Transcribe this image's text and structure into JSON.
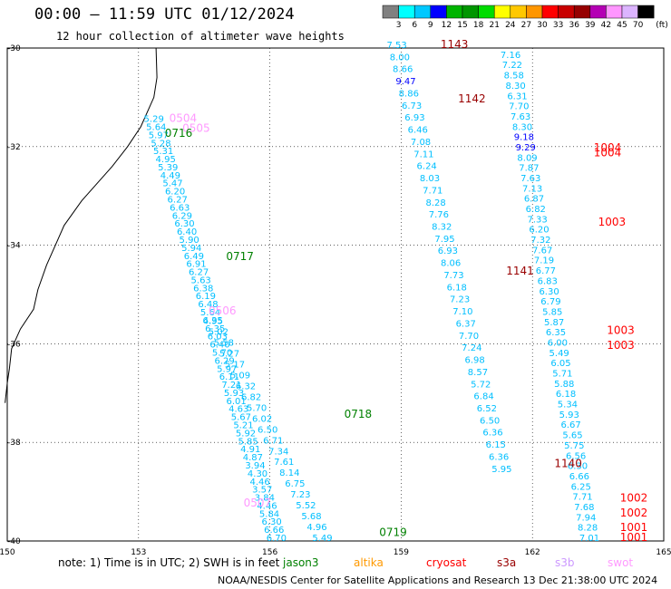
{
  "title": "00:00 – 11:59 UTC 01/12/2024",
  "subtitle": "12 hour collection of altimeter wave heights",
  "footer": "NOAA/NESDIS Center for Satellite Applications and Research   13 Dec 21:38:00 UTC 2024",
  "note": "note: 1) Time is in UTC; 2) SWH is in feet",
  "colorbar": {
    "unit": "(ft)",
    "ticks": [
      "3",
      "6",
      "9",
      "12",
      "15",
      "18",
      "21",
      "24",
      "27",
      "30",
      "33",
      "36",
      "39",
      "42",
      "45",
      "70"
    ],
    "colors": [
      "#808080",
      "#00ffff",
      "#00c8ff",
      "#0000ff",
      "#00b400",
      "#009600",
      "#00dc00",
      "#ffff00",
      "#ffc800",
      "#ff9600",
      "#ff0000",
      "#c80000",
      "#960000",
      "#b400b4",
      "#ff96ff",
      "#dcb4ff",
      "#000000"
    ]
  },
  "satellites": [
    {
      "name": "jason3",
      "color": "#008000"
    },
    {
      "name": "altika",
      "color": "#ff9900"
    },
    {
      "name": "cryosat",
      "color": "#ff0000"
    },
    {
      "name": "s3a",
      "color": "#990000"
    },
    {
      "name": "s3b",
      "color": "#cc99ff"
    },
    {
      "name": "swot",
      "color": "#ff99ff"
    }
  ],
  "chart_data": {
    "type": "scatter",
    "title": "00:00 – 11:59 UTC 01/12/2024",
    "subtitle": "12 hour collection of altimeter wave heights",
    "xlim": [
      150,
      165
    ],
    "ylim": [
      -40,
      -30
    ],
    "x_ticks": [
      "150",
      "153",
      "156",
      "159",
      "162",
      "165"
    ],
    "y_ticks": [
      "-30",
      "-32",
      "-34",
      "-36",
      "-38",
      "-40"
    ],
    "grid": true,
    "pass_labels": [
      {
        "text": "0504",
        "color": "#ff99ff",
        "lon": 153.7,
        "lat": -31.5
      },
      {
        "text": "0505",
        "color": "#ff99ff",
        "lon": 154.0,
        "lat": -31.7
      },
      {
        "text": "0716",
        "color": "#008000",
        "lon": 153.6,
        "lat": -31.8
      },
      {
        "text": "0717",
        "color": "#008000",
        "lon": 155.0,
        "lat": -34.3
      },
      {
        "text": "0506",
        "color": "#ff99ff",
        "lon": 154.6,
        "lat": -35.4
      },
      {
        "text": "0718",
        "color": "#008000",
        "lon": 157.7,
        "lat": -37.5
      },
      {
        "text": "0507",
        "color": "#ff99ff",
        "lon": 155.4,
        "lat": -39.3
      },
      {
        "text": "0719",
        "color": "#008000",
        "lon": 158.5,
        "lat": -39.9
      },
      {
        "text": "1143",
        "color": "#990000",
        "lon": 159.9,
        "lat": -30.0
      },
      {
        "text": "1142",
        "color": "#990000",
        "lon": 160.3,
        "lat": -31.1
      },
      {
        "text": "1141",
        "color": "#990000",
        "lon": 161.4,
        "lat": -34.6
      },
      {
        "text": "1140",
        "color": "#990000",
        "lon": 162.5,
        "lat": -38.5
      },
      {
        "text": "1004",
        "color": "#ff0000",
        "lon": 163.4,
        "lat": -32.1
      },
      {
        "text": "1004",
        "color": "#ff0000",
        "lon": 163.4,
        "lat": -32.2
      },
      {
        "text": "1003",
        "color": "#ff0000",
        "lon": 163.5,
        "lat": -33.6
      },
      {
        "text": "1003",
        "color": "#ff0000",
        "lon": 163.7,
        "lat": -35.8
      },
      {
        "text": "1003",
        "color": "#ff0000",
        "lon": 163.7,
        "lat": -36.1
      },
      {
        "text": "1002",
        "color": "#ff0000",
        "lon": 164.0,
        "lat": -39.2
      },
      {
        "text": "1002",
        "color": "#ff0000",
        "lon": 164.0,
        "lat": -39.5
      },
      {
        "text": "1001",
        "color": "#ff0000",
        "lon": 164.0,
        "lat": -39.8
      },
      {
        "text": "1001",
        "color": "#ff0000",
        "lon": 164.0,
        "lat": -40.0
      }
    ],
    "tracks": [
      {
        "start": [
          153.35,
          -31.5
        ],
        "end": [
          156.15,
          -40.0
        ],
        "values": [
          "5.29",
          "5.64",
          "5.97",
          "5.28",
          "5.31",
          "4.95",
          "5.39",
          "4.49",
          "5.47",
          "6.20",
          "6.27",
          "6.63",
          "6.29",
          "6.30",
          "6.40",
          "5.90",
          "5.94",
          "6.49",
          "6.91",
          "6.27",
          "5.63",
          "6.38",
          "6.19",
          "6.48",
          "5.64",
          "6.35",
          "6.35",
          "6.03",
          "6.40",
          "5.70",
          "6.29",
          "5.97",
          "6.11",
          "7.21",
          "5.93",
          "6.01",
          "4.63",
          "5.67",
          "5.21",
          "5.92",
          "5.85",
          "4.91",
          "4.87",
          "3.94",
          "4.30",
          "4.46",
          "3.57",
          "3.84",
          "4.46",
          "5.84",
          "6.30",
          "6.66",
          "6.70"
        ]
      },
      {
        "start": [
          154.7,
          -35.6
        ],
        "end": [
          157.2,
          -40.0
        ],
        "values": [
          "4.95",
          "5.02",
          "5.58",
          "5.27",
          "5.17",
          "5.09",
          "6.32",
          "6.82",
          "5.70",
          "6.02",
          "6.50",
          "6.71",
          "7.34",
          "7.61",
          "8.14",
          "6.75",
          "7.23",
          "5.52",
          "5.68",
          "4.96",
          "5.49"
        ]
      },
      {
        "start": [
          158.9,
          -30.0
        ],
        "end": [
          161.3,
          -38.6
        ],
        "values": [
          "7.53",
          "8.00",
          "8.66",
          "9.47",
          "8.86",
          "6.73",
          "6.93",
          "6.46",
          "7.08",
          "7.11",
          "6.24",
          "8.03",
          "7.71",
          "8.28",
          "7.76",
          "8.32",
          "7.95",
          "6.93",
          "8.06",
          "7.73",
          "6.18",
          "7.23",
          "7.10",
          "6.37",
          "7.70",
          "7.24",
          "6.98",
          "8.57",
          "5.72",
          "6.84",
          "6.52",
          "6.50",
          "6.36",
          "6.15",
          "6.36",
          "5.95"
        ]
      },
      {
        "start": [
          161.5,
          -30.2
        ],
        "end": [
          163.3,
          -40.0
        ],
        "values": [
          "7.16",
          "7.22",
          "8.58",
          "8.30",
          "6.31",
          "7.70",
          "7.63",
          "8.30",
          "9.18",
          "9.29",
          "8.09",
          "7.87",
          "7.63",
          "7.13",
          "6.87",
          "6.82",
          "7.33",
          "6.20",
          "7.32",
          "7.67",
          "7.19",
          "6.77",
          "6.83",
          "6.30",
          "6.79",
          "5.85",
          "5.87",
          "6.35",
          "6.00",
          "5.49",
          "6.05",
          "5.71",
          "5.88",
          "6.18",
          "5.34",
          "5.93",
          "6.67",
          "5.65",
          "5.75",
          "6.56",
          "6.30",
          "6.66",
          "6.25",
          "7.71",
          "7.68",
          "7.94",
          "8.28",
          "7.01"
        ]
      }
    ]
  }
}
